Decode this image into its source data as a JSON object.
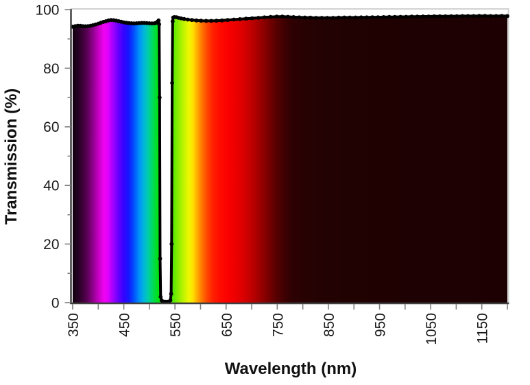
{
  "chart_data": {
    "type": "area",
    "title": "",
    "xlabel": "Wavelength (nm)",
    "ylabel": "Transmission (%)",
    "xlim": [
      350,
      1200
    ],
    "ylim": [
      0,
      100
    ],
    "x_major_ticks": [
      350,
      450,
      550,
      650,
      750,
      850,
      950,
      1050,
      1150
    ],
    "x_minor_ticks": [
      400,
      500,
      600,
      700,
      800,
      900,
      1000,
      1100,
      1200
    ],
    "y_major_ticks": [
      0,
      20,
      40,
      60,
      80,
      100
    ],
    "y_minor_ticks": [
      10,
      30,
      50,
      70,
      90
    ],
    "grid": "off",
    "legend": "none",
    "notch_filter": {
      "center_nm": 532,
      "blocked_from_nm": 520,
      "blocked_to_nm": 544
    },
    "style": {
      "curve_color": "#000000",
      "axis_color": "#3f3f3f",
      "tick_color": "#7f7f7f",
      "plot_border_color": "#d2d2d2",
      "background": "#ffffff"
    },
    "spectrum_fill_stops": [
      {
        "nm": 350,
        "color": "#12010f"
      },
      {
        "nm": 363,
        "color": "#2b0128"
      },
      {
        "nm": 377,
        "color": "#55014f"
      },
      {
        "nm": 390,
        "color": "#91018d"
      },
      {
        "nm": 401,
        "color": "#c802c6"
      },
      {
        "nm": 411,
        "color": "#f002f0"
      },
      {
        "nm": 418,
        "color": "#e202fa"
      },
      {
        "nm": 428,
        "color": "#a802ff"
      },
      {
        "nm": 440,
        "color": "#6202ff"
      },
      {
        "nm": 450,
        "color": "#3502ff"
      },
      {
        "nm": 460,
        "color": "#1418ff"
      },
      {
        "nm": 470,
        "color": "#0052ff"
      },
      {
        "nm": 480,
        "color": "#0090f8"
      },
      {
        "nm": 488,
        "color": "#00b2e2"
      },
      {
        "nm": 497,
        "color": "#00ccae"
      },
      {
        "nm": 506,
        "color": "#00da62"
      },
      {
        "nm": 515,
        "color": "#00e01e"
      },
      {
        "nm": 523,
        "color": "#06e202"
      },
      {
        "nm": 545,
        "color": "#4fe802"
      },
      {
        "nm": 557,
        "color": "#8fee00"
      },
      {
        "nm": 568,
        "color": "#c4f400"
      },
      {
        "nm": 577,
        "color": "#eef800"
      },
      {
        "nm": 585,
        "color": "#ffe100"
      },
      {
        "nm": 593,
        "color": "#ffae00"
      },
      {
        "nm": 602,
        "color": "#ff7a00"
      },
      {
        "nm": 612,
        "color": "#ff4a00"
      },
      {
        "nm": 623,
        "color": "#ff2300"
      },
      {
        "nm": 637,
        "color": "#ff0c00"
      },
      {
        "nm": 652,
        "color": "#fb0100"
      },
      {
        "nm": 668,
        "color": "#ee0000"
      },
      {
        "nm": 684,
        "color": "#d90000"
      },
      {
        "nm": 700,
        "color": "#be0000"
      },
      {
        "nm": 716,
        "color": "#9e0000"
      },
      {
        "nm": 732,
        "color": "#7a0000"
      },
      {
        "nm": 748,
        "color": "#580001"
      },
      {
        "nm": 764,
        "color": "#3e0002"
      },
      {
        "nm": 780,
        "color": "#2e0103"
      },
      {
        "nm": 800,
        "color": "#280203"
      },
      {
        "nm": 830,
        "color": "#240203"
      },
      {
        "nm": 880,
        "color": "#210202"
      },
      {
        "nm": 950,
        "color": "#1f0102"
      },
      {
        "nm": 1060,
        "color": "#1e0102"
      },
      {
        "nm": 1200,
        "color": "#1d0102"
      }
    ],
    "series": [
      {
        "name": "transmission",
        "marker": "filled-circle",
        "color": "#000000",
        "points": [
          [
            350,
            94.2
          ],
          [
            355,
            94.35
          ],
          [
            360,
            94.5
          ],
          [
            365,
            94.45
          ],
          [
            370,
            94.35
          ],
          [
            375,
            94.3
          ],
          [
            380,
            94.35
          ],
          [
            385,
            94.5
          ],
          [
            390,
            94.7
          ],
          [
            395,
            94.95
          ],
          [
            400,
            95.2
          ],
          [
            405,
            95.5
          ],
          [
            410,
            95.8
          ],
          [
            415,
            96.05
          ],
          [
            420,
            96.3
          ],
          [
            425,
            96.45
          ],
          [
            430,
            96.4
          ],
          [
            435,
            96.25
          ],
          [
            440,
            96.05
          ],
          [
            445,
            95.85
          ],
          [
            450,
            95.65
          ],
          [
            455,
            95.5
          ],
          [
            460,
            95.4
          ],
          [
            465,
            95.35
          ],
          [
            470,
            95.3
          ],
          [
            475,
            95.35
          ],
          [
            480,
            95.4
          ],
          [
            485,
            95.45
          ],
          [
            490,
            95.45
          ],
          [
            495,
            95.4
          ],
          [
            500,
            95.35
          ],
          [
            505,
            95.3
          ],
          [
            510,
            95.35
          ],
          [
            513,
            95.5
          ],
          [
            516,
            95.9
          ],
          [
            518,
            96.3
          ],
          [
            519,
            95.0
          ],
          [
            520,
            70
          ],
          [
            521,
            15
          ],
          [
            522,
            2
          ],
          [
            524,
            0.7
          ],
          [
            527,
            0.4
          ],
          [
            531,
            0.3
          ],
          [
            535,
            0.3
          ],
          [
            539,
            0.4
          ],
          [
            541,
            0.8
          ],
          [
            542.5,
            3
          ],
          [
            543.5,
            20
          ],
          [
            544.5,
            75
          ],
          [
            545.5,
            96
          ],
          [
            546.5,
            97.3
          ],
          [
            549,
            97.45
          ],
          [
            553,
            97.4
          ],
          [
            557,
            97.2
          ],
          [
            562,
            97.0
          ],
          [
            568,
            96.8
          ],
          [
            575,
            96.6
          ],
          [
            583,
            96.45
          ],
          [
            592,
            96.3
          ],
          [
            601,
            96.2
          ],
          [
            611,
            96.15
          ],
          [
            621,
            96.15
          ],
          [
            631,
            96.2
          ],
          [
            642,
            96.3
          ],
          [
            653,
            96.45
          ],
          [
            665,
            96.6
          ],
          [
            677,
            96.75
          ],
          [
            689,
            96.9
          ],
          [
            701,
            97.05
          ],
          [
            713,
            97.2
          ],
          [
            725,
            97.35
          ],
          [
            737,
            97.5
          ],
          [
            749,
            97.6
          ],
          [
            760,
            97.6
          ],
          [
            771,
            97.55
          ],
          [
            782,
            97.45
          ],
          [
            793,
            97.35
          ],
          [
            804,
            97.3
          ],
          [
            815,
            97.25
          ],
          [
            826,
            97.2
          ],
          [
            837,
            97.2
          ],
          [
            848,
            97.2
          ],
          [
            859,
            97.2
          ],
          [
            870,
            97.25
          ],
          [
            881,
            97.3
          ],
          [
            892,
            97.3
          ],
          [
            903,
            97.3
          ],
          [
            914,
            97.35
          ],
          [
            925,
            97.35
          ],
          [
            936,
            97.4
          ],
          [
            947,
            97.4
          ],
          [
            958,
            97.45
          ],
          [
            969,
            97.5
          ],
          [
            980,
            97.5
          ],
          [
            991,
            97.55
          ],
          [
            1002,
            97.55
          ],
          [
            1013,
            97.6
          ],
          [
            1024,
            97.6
          ],
          [
            1035,
            97.65
          ],
          [
            1046,
            97.65
          ],
          [
            1057,
            97.7
          ],
          [
            1068,
            97.7
          ],
          [
            1079,
            97.7
          ],
          [
            1090,
            97.75
          ],
          [
            1101,
            97.75
          ],
          [
            1112,
            97.8
          ],
          [
            1123,
            97.8
          ],
          [
            1134,
            97.8
          ],
          [
            1145,
            97.85
          ],
          [
            1156,
            97.85
          ],
          [
            1167,
            97.8
          ],
          [
            1178,
            97.8
          ],
          [
            1189,
            97.85
          ],
          [
            1200,
            97.8
          ]
        ]
      }
    ]
  }
}
